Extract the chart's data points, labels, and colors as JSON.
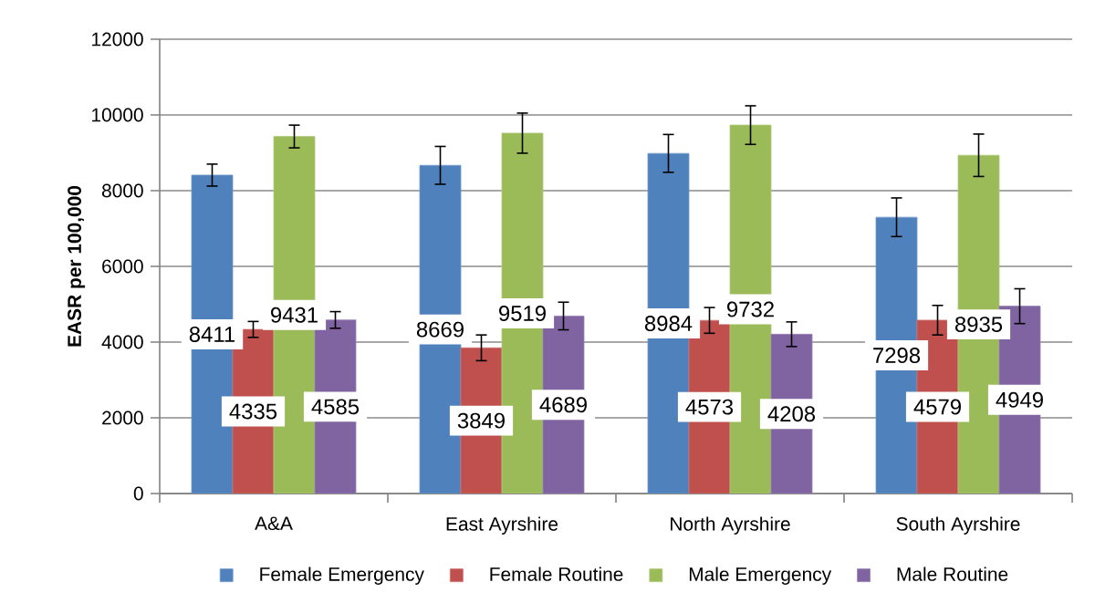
{
  "chart_data": {
    "type": "bar",
    "ylabel": "EASR per 100,000",
    "categories": [
      "A&A",
      "East Ayrshire",
      "North Ayrshire",
      "South Ayrshire"
    ],
    "series": [
      {
        "name": "Female Emergency",
        "color": "#4f81bd",
        "values": [
          8411,
          8669,
          8984,
          7298
        ],
        "errors": [
          290,
          500,
          500,
          510
        ]
      },
      {
        "name": "Female Routine",
        "color": "#c0504d",
        "values": [
          4335,
          3849,
          4573,
          4579
        ],
        "errors": [
          210,
          340,
          340,
          390
        ]
      },
      {
        "name": "Male Emergency",
        "color": "#9bbb59",
        "values": [
          9431,
          9519,
          9732,
          8935
        ],
        "errors": [
          300,
          530,
          510,
          560
        ]
      },
      {
        "name": "Male Routine",
        "color": "#8064a2",
        "values": [
          4585,
          4689,
          4208,
          4949
        ],
        "errors": [
          220,
          365,
          325,
          460
        ]
      }
    ],
    "ylim": [
      0,
      12000
    ],
    "yticks": [
      0,
      2000,
      4000,
      6000,
      8000,
      10000,
      12000
    ],
    "grid": "y",
    "legend": "bottom",
    "data_labels": true
  }
}
